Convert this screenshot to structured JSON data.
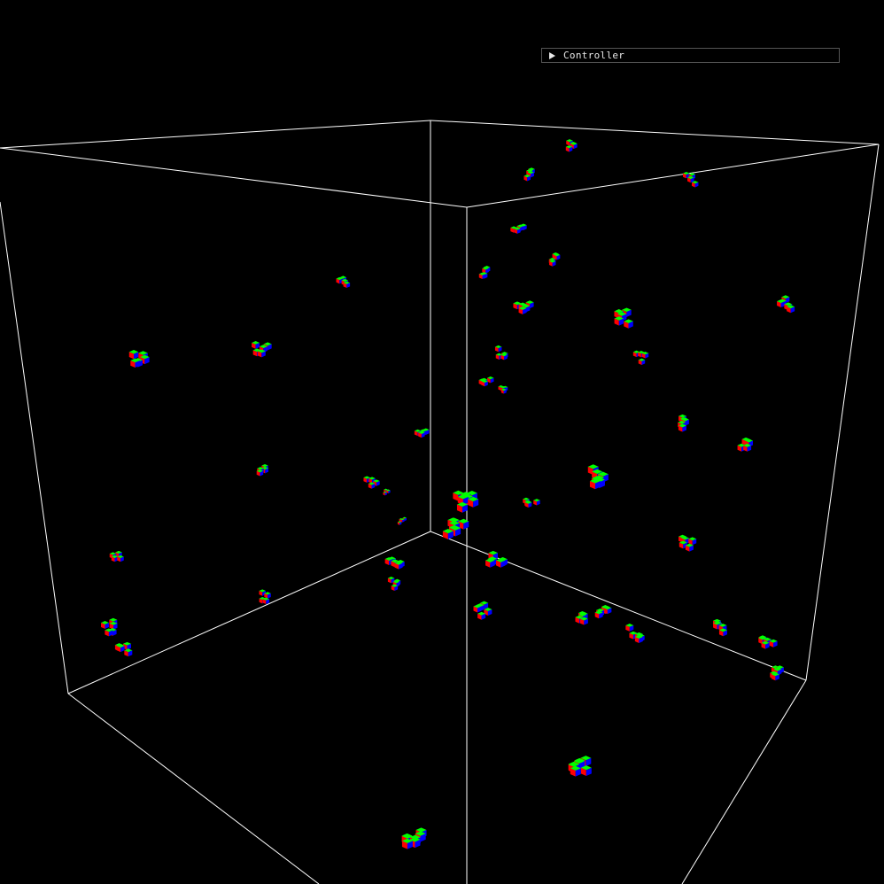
{
  "controller": {
    "label": "Controller",
    "expanded": false,
    "icon": "triangle-right-icon"
  },
  "scene": {
    "background": "#000000",
    "box_edge_color": "#ffffff",
    "voxel_face_colors": {
      "top": "#00ff00",
      "left": "#ff0000",
      "right": "#0000ff"
    }
  }
}
